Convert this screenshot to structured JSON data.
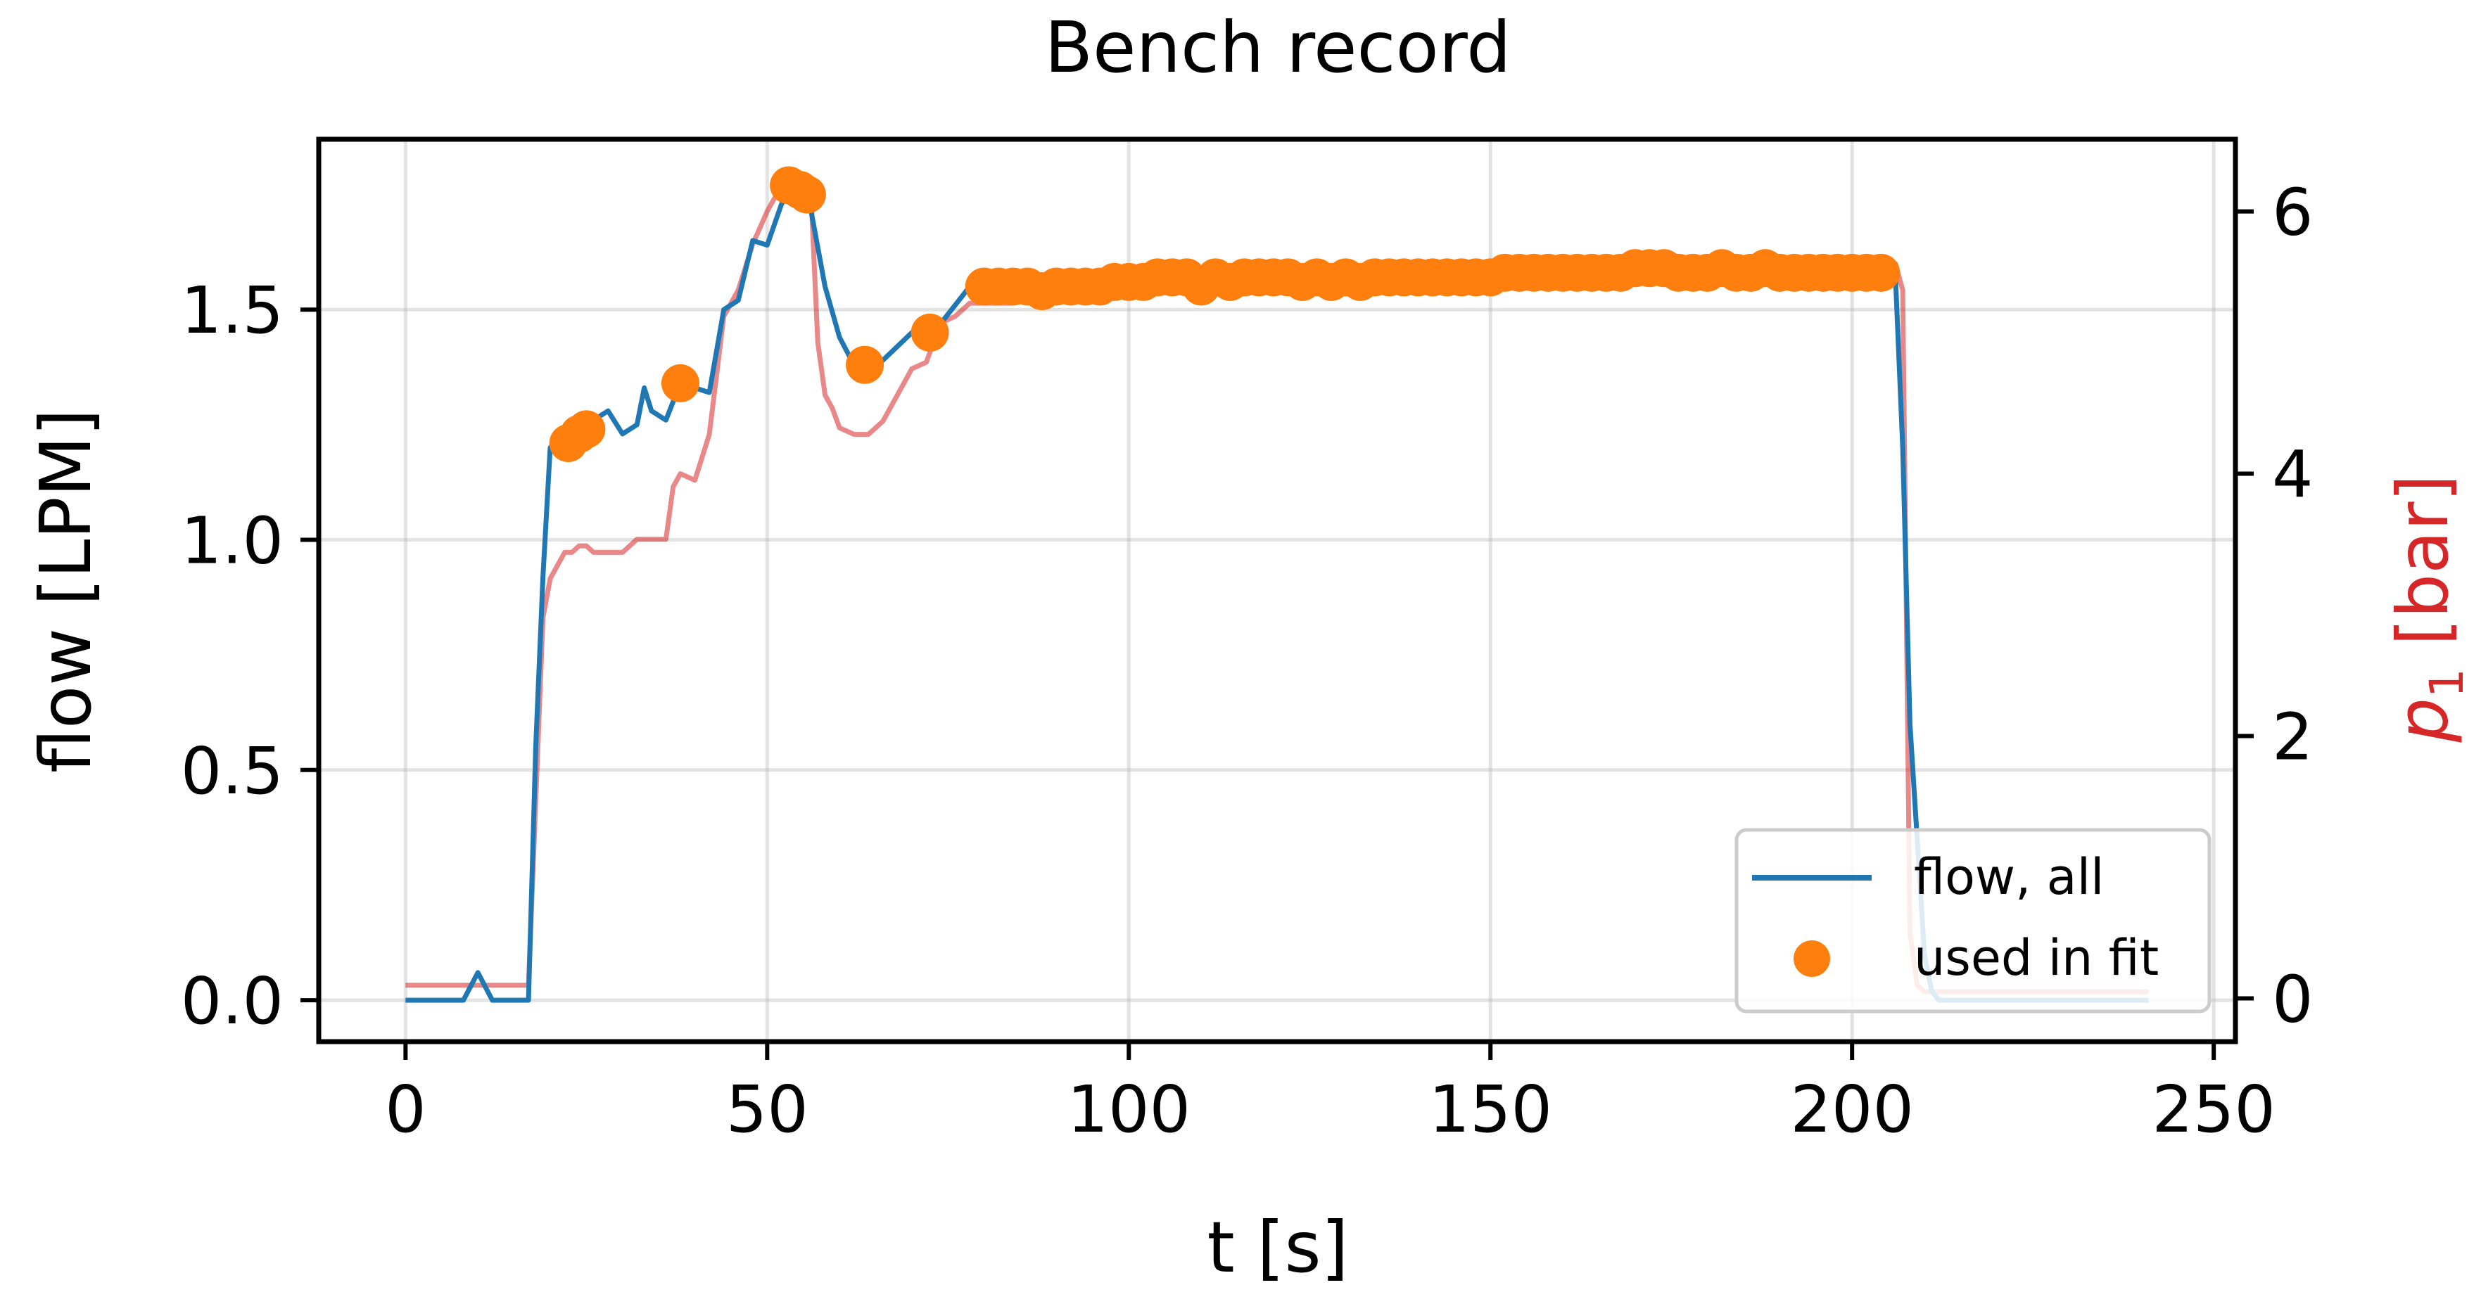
{
  "chart_data": {
    "type": "line",
    "title": "Bench record",
    "xlabel": "t [s]",
    "ylabel": "flow [LPM]",
    "y2label_var": "p",
    "y2label_sub": "1",
    "y2label_unit": " [bar]",
    "xlim": [
      -12,
      253
    ],
    "ylim": [
      -0.09,
      1.87
    ],
    "y2lim": [
      -0.33,
      6.55
    ],
    "grid": true,
    "legend_position": "lower-right",
    "x_ticks": [
      0,
      50,
      100,
      150,
      200,
      250
    ],
    "x_tick_labels": [
      "0",
      "50",
      "100",
      "150",
      "200",
      "250"
    ],
    "y_ticks": [
      0.0,
      0.5,
      1.0,
      1.5
    ],
    "y_tick_labels": [
      "0.0",
      "0.5",
      "1.0",
      "1.5"
    ],
    "y2_ticks": [
      0,
      2,
      4,
      6
    ],
    "y2_tick_labels": [
      "0",
      "2",
      "4",
      "6"
    ],
    "colors": {
      "flow": "#1f77b4",
      "fit": "#ff7f0e",
      "pressure": "#d62728"
    },
    "series": [
      {
        "name": "flow, all",
        "axis": "left",
        "x": [
          0,
          2,
          4,
          6,
          8,
          10,
          12,
          14,
          16,
          17,
          18,
          19,
          20,
          21,
          22,
          23,
          24,
          25,
          26,
          28,
          30,
          32,
          33,
          34,
          36,
          38,
          40,
          42,
          44,
          46,
          48,
          50,
          52,
          54,
          56,
          58,
          60,
          62,
          64,
          66,
          68,
          70,
          72,
          74,
          76,
          78,
          80,
          84,
          88,
          92,
          96,
          100,
          104,
          108,
          112,
          116,
          120,
          124,
          128,
          132,
          136,
          140,
          144,
          148,
          152,
          156,
          160,
          164,
          168,
          172,
          176,
          180,
          184,
          188,
          192,
          196,
          200,
          202,
          204,
          205,
          206,
          207,
          208,
          209,
          210,
          211,
          212,
          214,
          216,
          220,
          225,
          230,
          235,
          241
        ],
        "y": [
          0.0,
          0.0,
          0.0,
          0.0,
          0.0,
          0.06,
          0.0,
          0.0,
          0.0,
          0.0,
          0.55,
          0.92,
          1.2,
          1.22,
          1.22,
          1.23,
          1.22,
          1.24,
          1.26,
          1.28,
          1.23,
          1.25,
          1.33,
          1.28,
          1.26,
          1.34,
          1.33,
          1.32,
          1.5,
          1.52,
          1.65,
          1.64,
          1.73,
          1.77,
          1.72,
          1.55,
          1.44,
          1.38,
          1.38,
          1.39,
          1.42,
          1.45,
          1.46,
          1.47,
          1.51,
          1.55,
          1.55,
          1.55,
          1.55,
          1.55,
          1.56,
          1.56,
          1.57,
          1.56,
          1.57,
          1.56,
          1.55,
          1.57,
          1.57,
          1.56,
          1.56,
          1.57,
          1.57,
          1.57,
          1.57,
          1.58,
          1.58,
          1.58,
          1.59,
          1.58,
          1.58,
          1.59,
          1.59,
          1.58,
          1.58,
          1.58,
          1.58,
          1.58,
          1.58,
          1.58,
          1.57,
          1.2,
          0.6,
          0.35,
          0.1,
          0.02,
          0.0,
          0.0,
          0.0,
          0.0,
          0.0,
          0.0,
          0.0,
          0.0
        ]
      },
      {
        "name": "used in fit",
        "axis": "left",
        "x": [
          22.5,
          24.0,
          25.0,
          38.0,
          53.0,
          54.5,
          55.5,
          63.5,
          72.5,
          80.0,
          82.0,
          84.0,
          86.0,
          88.0,
          90.0,
          92.0,
          94.0,
          96.0,
          98.0,
          100.0,
          102.0,
          104.0,
          106.0,
          108.0,
          110.0,
          112.0,
          114.0,
          116.0,
          118.0,
          120.0,
          122.0,
          124.0,
          126.0,
          128.0,
          130.0,
          132.0,
          134.0,
          136.0,
          138.0,
          140.0,
          142.0,
          144.0,
          146.0,
          148.0,
          150.0,
          152.0,
          154.0,
          156.0,
          158.0,
          160.0,
          162.0,
          164.0,
          166.0,
          168.0,
          170.0,
          172.0,
          174.0,
          176.0,
          178.0,
          180.0,
          182.0,
          184.0,
          186.0,
          188.0,
          190.0,
          192.0,
          194.0,
          196.0,
          198.0,
          200.0,
          202.0,
          204.0
        ],
        "y": [
          1.21,
          1.23,
          1.24,
          1.34,
          1.77,
          1.76,
          1.75,
          1.38,
          1.45,
          1.55,
          1.55,
          1.55,
          1.55,
          1.54,
          1.55,
          1.55,
          1.55,
          1.55,
          1.56,
          1.56,
          1.56,
          1.57,
          1.57,
          1.57,
          1.55,
          1.57,
          1.56,
          1.57,
          1.57,
          1.57,
          1.57,
          1.56,
          1.57,
          1.56,
          1.57,
          1.56,
          1.57,
          1.57,
          1.57,
          1.57,
          1.57,
          1.57,
          1.57,
          1.57,
          1.57,
          1.58,
          1.58,
          1.58,
          1.58,
          1.58,
          1.58,
          1.58,
          1.58,
          1.58,
          1.59,
          1.59,
          1.59,
          1.58,
          1.58,
          1.58,
          1.59,
          1.58,
          1.58,
          1.59,
          1.58,
          1.58,
          1.58,
          1.58,
          1.58,
          1.58,
          1.58,
          1.58
        ]
      },
      {
        "name": "p1",
        "axis": "right",
        "x": [
          0,
          2,
          4,
          6,
          8,
          10,
          12,
          14,
          16,
          17,
          18,
          19,
          20,
          21,
          22,
          23,
          24,
          25,
          26,
          28,
          30,
          32,
          34,
          36,
          37,
          38,
          40,
          42,
          44,
          46,
          48,
          50,
          52,
          54,
          56,
          57,
          58,
          59,
          60,
          62,
          64,
          66,
          68,
          70,
          72,
          74,
          76,
          78,
          80,
          84,
          88,
          92,
          96,
          100,
          104,
          108,
          112,
          116,
          120,
          124,
          128,
          132,
          136,
          140,
          144,
          148,
          152,
          156,
          160,
          164,
          168,
          172,
          176,
          180,
          184,
          188,
          192,
          196,
          200,
          202,
          204,
          205,
          206,
          207,
          208,
          209,
          210,
          212,
          214,
          220,
          230,
          241
        ],
        "y": [
          0.1,
          0.1,
          0.1,
          0.1,
          0.1,
          0.1,
          0.1,
          0.1,
          0.1,
          0.1,
          1.5,
          2.9,
          3.2,
          3.3,
          3.4,
          3.4,
          3.45,
          3.45,
          3.4,
          3.4,
          3.4,
          3.5,
          3.5,
          3.5,
          3.9,
          4.0,
          3.95,
          4.3,
          5.2,
          5.4,
          5.75,
          6.0,
          6.2,
          6.25,
          6.2,
          5.0,
          4.6,
          4.5,
          4.35,
          4.3,
          4.3,
          4.4,
          4.6,
          4.8,
          4.85,
          5.15,
          5.2,
          5.3,
          5.3,
          5.3,
          5.35,
          5.4,
          5.45,
          5.5,
          5.5,
          5.5,
          5.55,
          5.5,
          5.55,
          5.5,
          5.5,
          5.55,
          5.55,
          5.55,
          5.5,
          5.55,
          5.55,
          5.55,
          5.55,
          5.6,
          5.55,
          5.6,
          5.55,
          5.6,
          5.6,
          5.6,
          5.55,
          5.55,
          5.55,
          5.55,
          5.6,
          5.6,
          5.6,
          5.4,
          0.5,
          0.1,
          0.05,
          0.05,
          0.05,
          0.05,
          0.05,
          0.05
        ]
      }
    ]
  }
}
